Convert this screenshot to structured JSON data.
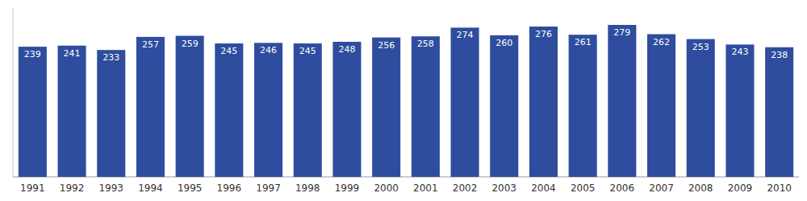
{
  "chart_data": {
    "type": "bar",
    "categories": [
      "1991",
      "1992",
      "1993",
      "1994",
      "1995",
      "1996",
      "1997",
      "1998",
      "1999",
      "2000",
      "2001",
      "2002",
      "2003",
      "2004",
      "2005",
      "2006",
      "2007",
      "2008",
      "2009",
      "2010"
    ],
    "values": [
      239,
      241,
      233,
      257,
      259,
      245,
      246,
      245,
      248,
      256,
      258,
      274,
      260,
      276,
      261,
      279,
      262,
      253,
      243,
      238
    ],
    "color": "#2e4d9e",
    "ylim": [
      0,
      310
    ],
    "grid": false,
    "data_labels": true,
    "tick_labels": "x"
  }
}
